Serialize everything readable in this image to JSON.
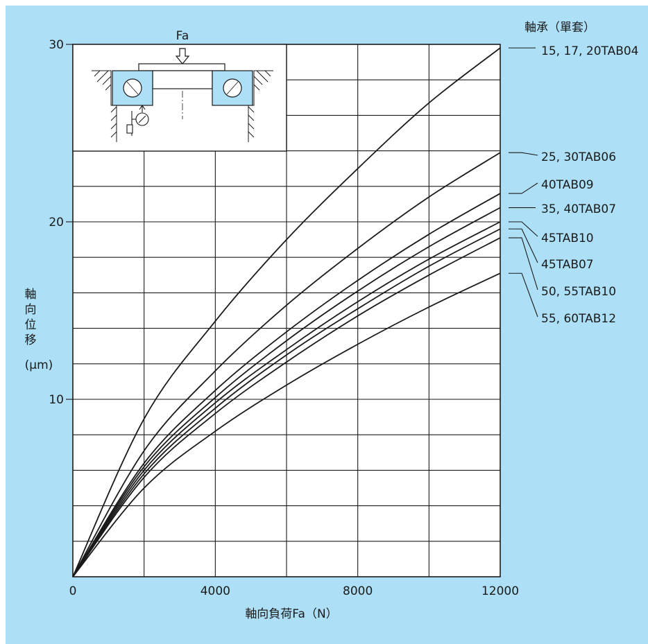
{
  "chart_data": {
    "type": "line",
    "legend_title": "軸承（單套）",
    "xlabel": "軸向負荷Fa（N）",
    "ylabel": "軸向位移",
    "yunit": "(μm)",
    "xlim": [
      0,
      12000
    ],
    "ylim": [
      0,
      30
    ],
    "x_ticks": [
      "0",
      "4000",
      "8000",
      "12000"
    ],
    "y_ticks": [
      "10",
      "20",
      "30"
    ],
    "grid": true,
    "legend_position": "right",
    "inset_label": "Fa",
    "series": [
      {
        "name": "15, 17, 20TAB04",
        "x": [
          0,
          2000,
          4000,
          6000,
          8000,
          10000,
          12000
        ],
        "y": [
          0,
          8.9,
          14.4,
          19.0,
          23.0,
          26.7,
          29.8
        ]
      },
      {
        "name": "25, 30TAB06",
        "x": [
          0,
          2000,
          4000,
          6000,
          8000,
          10000,
          12000
        ],
        "y": [
          0,
          7.1,
          11.6,
          15.3,
          18.5,
          21.4,
          23.9
        ]
      },
      {
        "name": "40TAB09",
        "x": [
          0,
          2000,
          4000,
          6000,
          8000,
          10000,
          12000
        ],
        "y": [
          0,
          6.4,
          10.5,
          13.8,
          16.7,
          19.3,
          21.6
        ]
      },
      {
        "name": "35, 40TAB07",
        "x": [
          0,
          2000,
          4000,
          6000,
          8000,
          10000,
          12000
        ],
        "y": [
          0,
          6.2,
          10.1,
          13.3,
          16.1,
          18.6,
          20.8
        ]
      },
      {
        "name": "45TAB10",
        "x": [
          0,
          2000,
          4000,
          6000,
          8000,
          10000,
          12000
        ],
        "y": [
          0,
          6.0,
          9.8,
          12.8,
          15.5,
          17.9,
          20.0
        ]
      },
      {
        "name": "45TAB07",
        "x": [
          0,
          2000,
          4000,
          6000,
          8000,
          10000,
          12000
        ],
        "y": [
          0,
          5.8,
          9.5,
          12.5,
          15.1,
          17.5,
          19.6
        ]
      },
      {
        "name": "50, 55TAB10",
        "x": [
          0,
          2000,
          4000,
          6000,
          8000,
          10000,
          12000
        ],
        "y": [
          0,
          5.6,
          9.2,
          12.1,
          14.7,
          17.0,
          19.1
        ]
      },
      {
        "name": "55, 60TAB12",
        "x": [
          0,
          2000,
          4000,
          6000,
          8000,
          10000,
          12000
        ],
        "y": [
          0,
          5.0,
          8.2,
          10.8,
          13.1,
          15.2,
          17.1
        ]
      }
    ]
  }
}
